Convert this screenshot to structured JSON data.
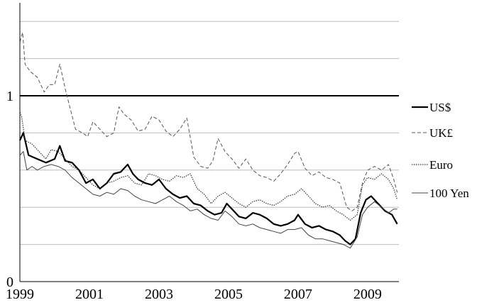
{
  "chart_data": {
    "type": "line",
    "title": "",
    "xlabel": "",
    "ylabel": "",
    "xlim": [
      1999,
      2009.9
    ],
    "ylim": [
      0,
      1.5
    ],
    "grid": true,
    "legend": "right",
    "x_ticks": [
      {
        "value": 1999,
        "label": "1999"
      },
      {
        "value": 2001,
        "label": "2001"
      },
      {
        "value": 2003,
        "label": "2003"
      },
      {
        "value": 2005,
        "label": "2005"
      },
      {
        "value": 2007,
        "label": "2007"
      },
      {
        "value": 2009,
        "label": "2009"
      }
    ],
    "y_ticks": [
      {
        "value": 0,
        "label": "0"
      },
      {
        "value": 1,
        "label": "1"
      }
    ],
    "gridlines_y": [
      0.2,
      0.4,
      0.6,
      0.8,
      1.0,
      1.2,
      1.4
    ],
    "series": [
      {
        "name": "US$",
        "style": "solid-thick",
        "color": "#000000",
        "points": [
          [
            1999.0,
            0.76
          ],
          [
            1999.1,
            0.8
          ],
          [
            1999.25,
            0.68
          ],
          [
            1999.5,
            0.66
          ],
          [
            1999.75,
            0.64
          ],
          [
            2000.0,
            0.66
          ],
          [
            2000.15,
            0.73
          ],
          [
            2000.3,
            0.65
          ],
          [
            2000.5,
            0.64
          ],
          [
            2000.7,
            0.6
          ],
          [
            2000.9,
            0.53
          ],
          [
            2001.1,
            0.55
          ],
          [
            2001.3,
            0.5
          ],
          [
            2001.5,
            0.53
          ],
          [
            2001.7,
            0.58
          ],
          [
            2001.9,
            0.59
          ],
          [
            2002.1,
            0.63
          ],
          [
            2002.25,
            0.58
          ],
          [
            2002.4,
            0.55
          ],
          [
            2002.6,
            0.53
          ],
          [
            2002.8,
            0.52
          ],
          [
            2003.0,
            0.55
          ],
          [
            2003.2,
            0.5
          ],
          [
            2003.4,
            0.47
          ],
          [
            2003.6,
            0.45
          ],
          [
            2003.8,
            0.46
          ],
          [
            2004.0,
            0.42
          ],
          [
            2004.2,
            0.41
          ],
          [
            2004.4,
            0.38
          ],
          [
            2004.6,
            0.36
          ],
          [
            2004.8,
            0.37
          ],
          [
            2004.95,
            0.42
          ],
          [
            2005.1,
            0.39
          ],
          [
            2005.3,
            0.35
          ],
          [
            2005.5,
            0.34
          ],
          [
            2005.7,
            0.37
          ],
          [
            2005.9,
            0.36
          ],
          [
            2006.1,
            0.34
          ],
          [
            2006.3,
            0.31
          ],
          [
            2006.5,
            0.3
          ],
          [
            2006.7,
            0.31
          ],
          [
            2006.9,
            0.33
          ],
          [
            2007.0,
            0.36
          ],
          [
            2007.2,
            0.31
          ],
          [
            2007.4,
            0.29
          ],
          [
            2007.6,
            0.3
          ],
          [
            2007.8,
            0.28
          ],
          [
            2008.0,
            0.27
          ],
          [
            2008.2,
            0.25
          ],
          [
            2008.35,
            0.22
          ],
          [
            2008.5,
            0.2
          ],
          [
            2008.65,
            0.23
          ],
          [
            2008.8,
            0.37
          ],
          [
            2008.95,
            0.44
          ],
          [
            2009.1,
            0.46
          ],
          [
            2009.3,
            0.42
          ],
          [
            2009.5,
            0.38
          ],
          [
            2009.7,
            0.36
          ],
          [
            2009.85,
            0.31
          ]
        ]
      },
      {
        "name": "UK£",
        "style": "dashed",
        "color": "#555555",
        "points": [
          [
            1999.0,
            1.29
          ],
          [
            1999.08,
            1.34
          ],
          [
            1999.15,
            1.17
          ],
          [
            1999.3,
            1.13
          ],
          [
            1999.5,
            1.1
          ],
          [
            1999.7,
            1.02
          ],
          [
            1999.85,
            1.06
          ],
          [
            2000.0,
            1.06
          ],
          [
            2000.15,
            1.17
          ],
          [
            2000.3,
            1.04
          ],
          [
            2000.45,
            0.93
          ],
          [
            2000.6,
            0.82
          ],
          [
            2000.8,
            0.8
          ],
          [
            2000.95,
            0.78
          ],
          [
            2001.1,
            0.86
          ],
          [
            2001.3,
            0.82
          ],
          [
            2001.5,
            0.78
          ],
          [
            2001.7,
            0.8
          ],
          [
            2001.85,
            0.94
          ],
          [
            2002.0,
            0.9
          ],
          [
            2002.2,
            0.87
          ],
          [
            2002.4,
            0.81
          ],
          [
            2002.6,
            0.82
          ],
          [
            2002.8,
            0.89
          ],
          [
            2003.0,
            0.87
          ],
          [
            2003.2,
            0.81
          ],
          [
            2003.4,
            0.78
          ],
          [
            2003.6,
            0.82
          ],
          [
            2003.8,
            0.88
          ],
          [
            2004.0,
            0.67
          ],
          [
            2004.2,
            0.62
          ],
          [
            2004.4,
            0.61
          ],
          [
            2004.55,
            0.65
          ],
          [
            2004.7,
            0.77
          ],
          [
            2004.9,
            0.7
          ],
          [
            2005.1,
            0.66
          ],
          [
            2005.3,
            0.61
          ],
          [
            2005.5,
            0.66
          ],
          [
            2005.7,
            0.6
          ],
          [
            2005.9,
            0.57
          ],
          [
            2006.1,
            0.56
          ],
          [
            2006.3,
            0.54
          ],
          [
            2006.5,
            0.58
          ],
          [
            2006.7,
            0.63
          ],
          [
            2006.9,
            0.69
          ],
          [
            2007.0,
            0.7
          ],
          [
            2007.2,
            0.61
          ],
          [
            2007.4,
            0.57
          ],
          [
            2007.6,
            0.59
          ],
          [
            2007.8,
            0.56
          ],
          [
            2008.0,
            0.55
          ],
          [
            2008.2,
            0.53
          ],
          [
            2008.4,
            0.4
          ],
          [
            2008.55,
            0.38
          ],
          [
            2008.7,
            0.4
          ],
          [
            2008.85,
            0.53
          ],
          [
            2009.0,
            0.6
          ],
          [
            2009.2,
            0.62
          ],
          [
            2009.4,
            0.6
          ],
          [
            2009.6,
            0.63
          ],
          [
            2009.75,
            0.55
          ],
          [
            2009.85,
            0.48
          ]
        ]
      },
      {
        "name": "Euro",
        "style": "dotted",
        "color": "#333333",
        "points": [
          [
            1999.0,
            0.91
          ],
          [
            1999.05,
            0.89
          ],
          [
            1999.15,
            0.76
          ],
          [
            1999.35,
            0.74
          ],
          [
            1999.55,
            0.7
          ],
          [
            1999.75,
            0.66
          ],
          [
            1999.9,
            0.71
          ],
          [
            2000.1,
            0.7
          ],
          [
            2000.3,
            0.66
          ],
          [
            2000.5,
            0.62
          ],
          [
            2000.7,
            0.6
          ],
          [
            2000.9,
            0.56
          ],
          [
            2001.1,
            0.52
          ],
          [
            2001.3,
            0.5
          ],
          [
            2001.5,
            0.53
          ],
          [
            2001.7,
            0.54
          ],
          [
            2001.9,
            0.56
          ],
          [
            2002.1,
            0.57
          ],
          [
            2002.3,
            0.53
          ],
          [
            2002.5,
            0.52
          ],
          [
            2002.7,
            0.58
          ],
          [
            2002.9,
            0.57
          ],
          [
            2003.1,
            0.55
          ],
          [
            2003.3,
            0.54
          ],
          [
            2003.5,
            0.57
          ],
          [
            2003.7,
            0.56
          ],
          [
            2003.9,
            0.58
          ],
          [
            2004.1,
            0.5
          ],
          [
            2004.3,
            0.47
          ],
          [
            2004.5,
            0.42
          ],
          [
            2004.7,
            0.46
          ],
          [
            2004.9,
            0.48
          ],
          [
            2005.1,
            0.45
          ],
          [
            2005.3,
            0.42
          ],
          [
            2005.5,
            0.4
          ],
          [
            2005.7,
            0.43
          ],
          [
            2005.9,
            0.44
          ],
          [
            2006.1,
            0.42
          ],
          [
            2006.3,
            0.41
          ],
          [
            2006.5,
            0.43
          ],
          [
            2006.7,
            0.46
          ],
          [
            2006.9,
            0.47
          ],
          [
            2007.1,
            0.5
          ],
          [
            2007.3,
            0.46
          ],
          [
            2007.5,
            0.42
          ],
          [
            2007.7,
            0.4
          ],
          [
            2007.9,
            0.41
          ],
          [
            2008.1,
            0.38
          ],
          [
            2008.3,
            0.36
          ],
          [
            2008.5,
            0.33
          ],
          [
            2008.7,
            0.36
          ],
          [
            2008.85,
            0.52
          ],
          [
            2009.0,
            0.56
          ],
          [
            2009.2,
            0.55
          ],
          [
            2009.4,
            0.58
          ],
          [
            2009.6,
            0.55
          ],
          [
            2009.75,
            0.5
          ],
          [
            2009.85,
            0.44
          ]
        ]
      },
      {
        "name": "100 Yen",
        "style": "solid-thin",
        "color": "#444444",
        "points": [
          [
            1999.0,
            0.68
          ],
          [
            1999.1,
            0.7
          ],
          [
            1999.2,
            0.6
          ],
          [
            1999.35,
            0.62
          ],
          [
            1999.5,
            0.6
          ],
          [
            1999.7,
            0.62
          ],
          [
            1999.9,
            0.63
          ],
          [
            2000.1,
            0.62
          ],
          [
            2000.3,
            0.6
          ],
          [
            2000.5,
            0.56
          ],
          [
            2000.7,
            0.53
          ],
          [
            2000.9,
            0.5
          ],
          [
            2001.1,
            0.47
          ],
          [
            2001.3,
            0.46
          ],
          [
            2001.5,
            0.48
          ],
          [
            2001.7,
            0.47
          ],
          [
            2001.9,
            0.5
          ],
          [
            2002.1,
            0.49
          ],
          [
            2002.3,
            0.46
          ],
          [
            2002.5,
            0.44
          ],
          [
            2002.7,
            0.43
          ],
          [
            2002.9,
            0.42
          ],
          [
            2003.1,
            0.44
          ],
          [
            2003.3,
            0.46
          ],
          [
            2003.5,
            0.43
          ],
          [
            2003.7,
            0.41
          ],
          [
            2003.9,
            0.38
          ],
          [
            2004.1,
            0.39
          ],
          [
            2004.3,
            0.36
          ],
          [
            2004.5,
            0.34
          ],
          [
            2004.7,
            0.33
          ],
          [
            2004.9,
            0.38
          ],
          [
            2005.1,
            0.35
          ],
          [
            2005.3,
            0.31
          ],
          [
            2005.5,
            0.3
          ],
          [
            2005.7,
            0.31
          ],
          [
            2005.9,
            0.29
          ],
          [
            2006.1,
            0.28
          ],
          [
            2006.3,
            0.27
          ],
          [
            2006.5,
            0.26
          ],
          [
            2006.7,
            0.28
          ],
          [
            2006.9,
            0.28
          ],
          [
            2007.1,
            0.29
          ],
          [
            2007.3,
            0.25
          ],
          [
            2007.5,
            0.23
          ],
          [
            2007.7,
            0.23
          ],
          [
            2007.9,
            0.22
          ],
          [
            2008.1,
            0.21
          ],
          [
            2008.3,
            0.2
          ],
          [
            2008.5,
            0.18
          ],
          [
            2008.7,
            0.24
          ],
          [
            2008.85,
            0.36
          ],
          [
            2009.0,
            0.4
          ],
          [
            2009.2,
            0.43
          ],
          [
            2009.4,
            0.4
          ],
          [
            2009.6,
            0.37
          ],
          [
            2009.75,
            0.39
          ],
          [
            2009.85,
            0.39
          ]
        ]
      }
    ]
  }
}
